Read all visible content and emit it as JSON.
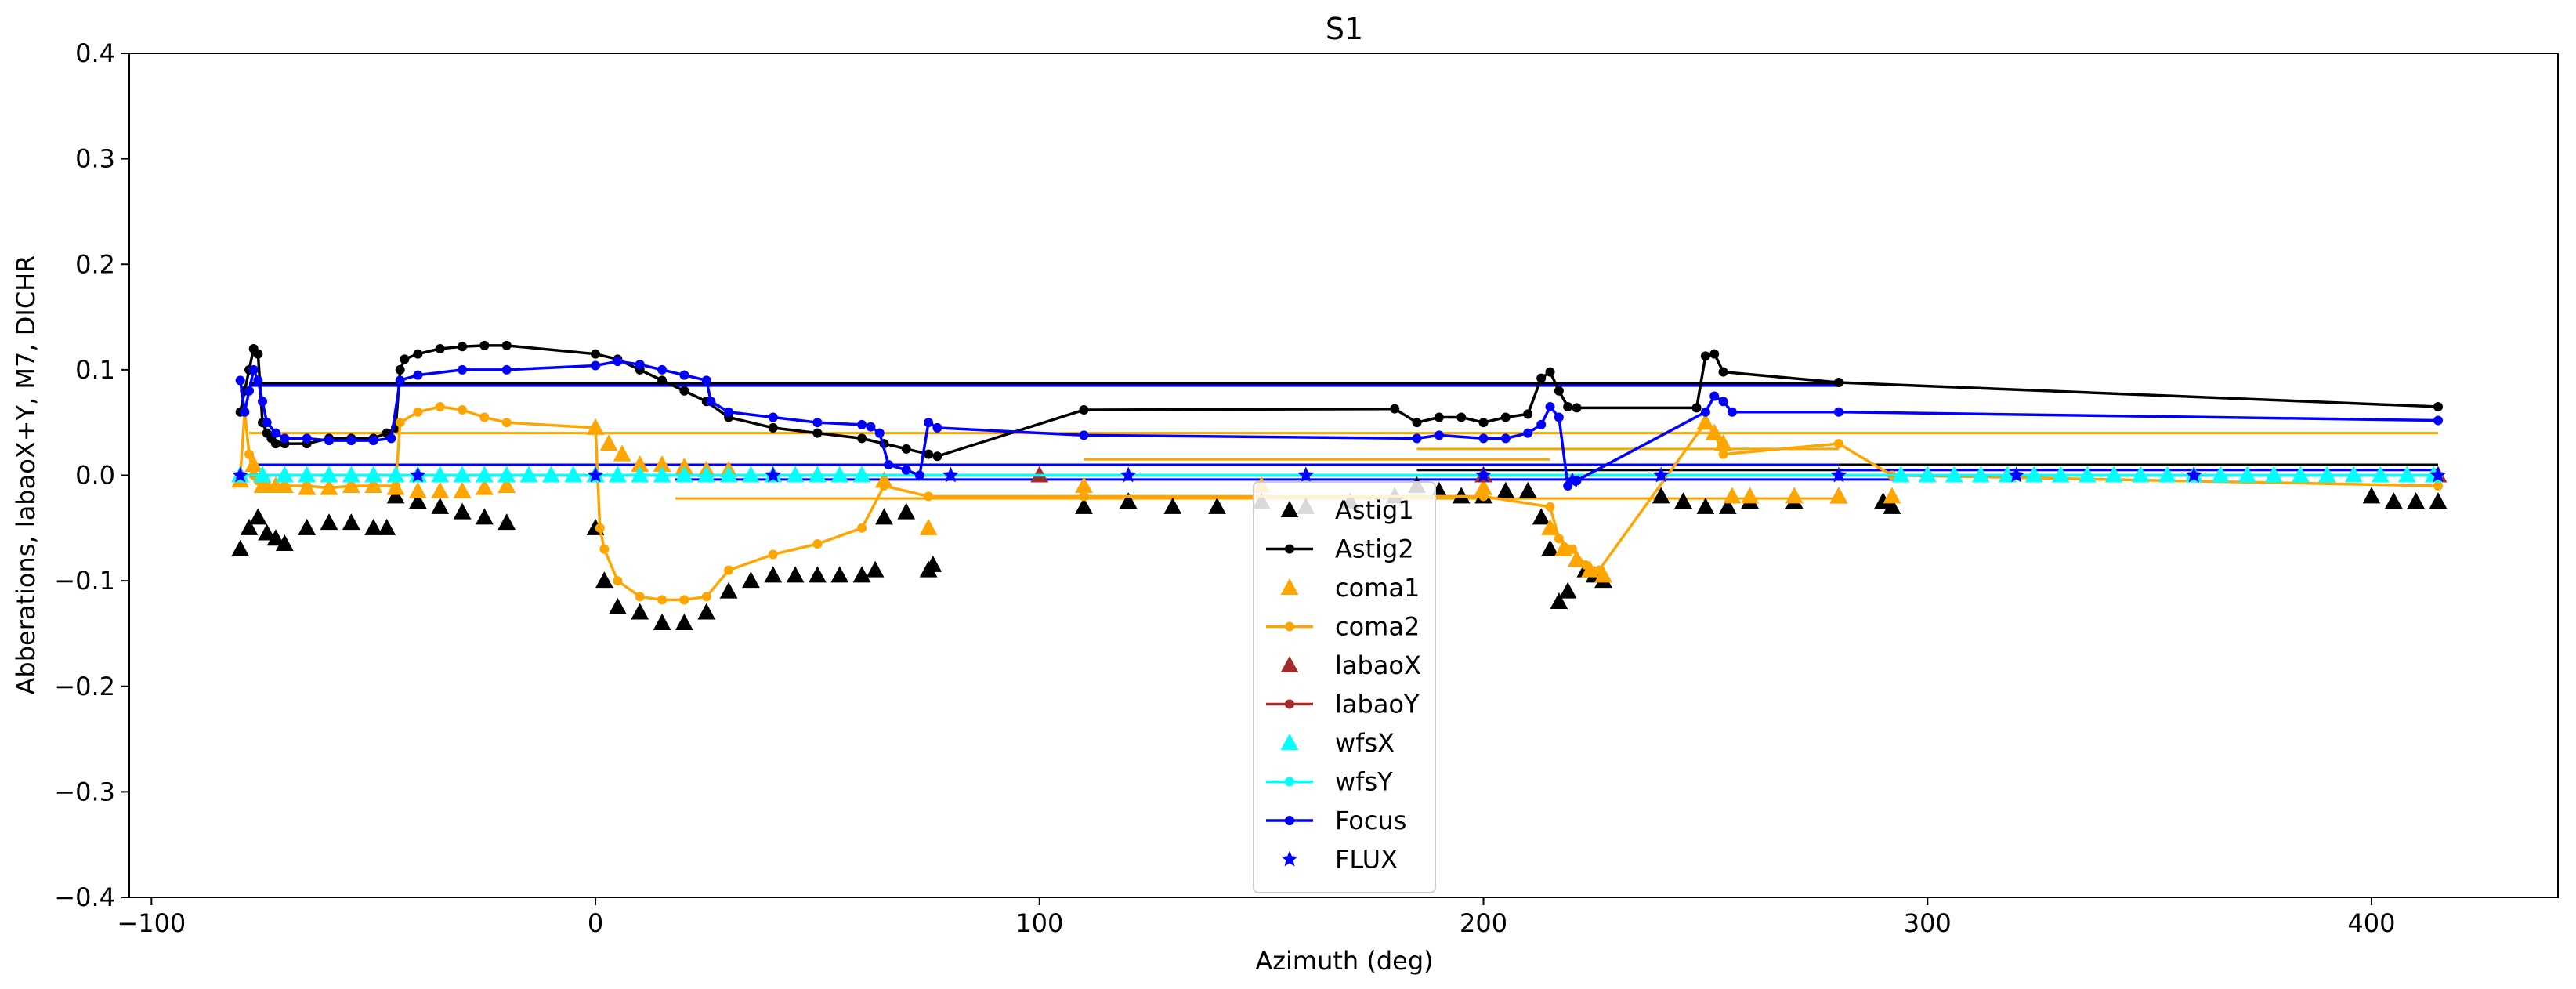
{
  "chart_data": {
    "type": "line",
    "title": "S1",
    "xlabel": "Azimuth (deg)",
    "ylabel": "Abberations, labaoX+Y, M7, DICHR",
    "xlim": [
      -105,
      442
    ],
    "ylim": [
      -0.4,
      0.4
    ],
    "xticks": [
      -100,
      0,
      100,
      200,
      300,
      400
    ],
    "xtick_labels": [
      "−100",
      "0",
      "100",
      "200",
      "300",
      "400"
    ],
    "yticks": [
      -0.4,
      -0.3,
      -0.2,
      -0.1,
      0.0,
      0.1,
      0.2,
      0.3,
      0.4
    ],
    "ytick_labels": [
      "−0.4",
      "−0.3",
      "−0.2",
      "−0.1",
      "0.0",
      "0.1",
      "0.2",
      "0.3",
      "0.4"
    ],
    "grid": false,
    "legend_position": "lower-center",
    "series": [
      {
        "name": "Astig1",
        "color": "#000000",
        "style": "markers",
        "marker": "triangle",
        "x": [
          -80,
          -78,
          -76,
          -74,
          -72,
          -70,
          -65,
          -60,
          -55,
          -50,
          -47,
          -45,
          -40,
          -35,
          -30,
          -25,
          -20,
          0,
          2,
          5,
          10,
          15,
          20,
          25,
          30,
          35,
          40,
          45,
          50,
          55,
          60,
          63,
          65,
          70,
          75,
          76,
          110,
          120,
          130,
          140,
          150,
          160,
          170,
          180,
          185,
          190,
          195,
          200,
          205,
          210,
          213,
          215,
          217,
          219,
          221,
          223,
          225,
          227,
          240,
          245,
          250,
          255,
          260,
          270,
          280,
          290,
          292,
          400,
          405,
          410,
          415
        ],
        "y": [
          -0.07,
          -0.05,
          -0.04,
          -0.055,
          -0.06,
          -0.065,
          -0.05,
          -0.045,
          -0.045,
          -0.05,
          -0.05,
          -0.02,
          -0.025,
          -0.03,
          -0.035,
          -0.04,
          -0.045,
          -0.05,
          -0.1,
          -0.125,
          -0.13,
          -0.14,
          -0.14,
          -0.13,
          -0.11,
          -0.1,
          -0.095,
          -0.095,
          -0.095,
          -0.095,
          -0.095,
          -0.09,
          -0.04,
          -0.035,
          -0.09,
          -0.085,
          -0.03,
          -0.025,
          -0.03,
          -0.03,
          -0.025,
          -0.03,
          -0.025,
          -0.02,
          -0.01,
          -0.015,
          -0.02,
          -0.02,
          -0.015,
          -0.015,
          -0.04,
          -0.07,
          -0.12,
          -0.11,
          -0.08,
          -0.09,
          -0.095,
          -0.1,
          -0.02,
          -0.025,
          -0.03,
          -0.03,
          -0.025,
          -0.025,
          -0.02,
          -0.025,
          -0.03,
          -0.02,
          -0.025,
          -0.025,
          -0.025
        ]
      },
      {
        "name": "Astig2",
        "color": "#000000",
        "style": "line-dots",
        "x": [
          -80,
          -79,
          -78,
          -77,
          -76,
          -75,
          -74,
          -73,
          -72,
          -70,
          -65,
          -60,
          -55,
          -50,
          -47,
          -45,
          -44,
          -43,
          -40,
          -35,
          -30,
          -25,
          -20,
          0,
          5,
          10,
          15,
          20,
          25,
          30,
          40,
          50,
          60,
          65,
          70,
          75,
          77,
          110,
          180,
          185,
          190,
          195,
          200,
          205,
          210,
          213,
          215,
          217,
          219,
          221,
          248,
          250,
          252,
          254,
          280,
          415
        ],
        "y": [
          0.06,
          0.08,
          0.1,
          0.12,
          0.115,
          0.05,
          0.04,
          0.035,
          0.03,
          0.03,
          0.03,
          0.035,
          0.035,
          0.035,
          0.04,
          0.045,
          0.1,
          0.11,
          0.115,
          0.12,
          0.122,
          0.123,
          0.123,
          0.115,
          0.11,
          0.1,
          0.09,
          0.08,
          0.07,
          0.055,
          0.045,
          0.04,
          0.035,
          0.03,
          0.025,
          0.02,
          0.018,
          0.062,
          0.063,
          0.05,
          0.055,
          0.055,
          0.05,
          0.055,
          0.058,
          0.092,
          0.098,
          0.08,
          0.065,
          0.064,
          0.064,
          0.113,
          0.115,
          0.098,
          0.088,
          0.065
        ]
      },
      {
        "name": "coma1",
        "color": "#ffa500",
        "style": "markers",
        "marker": "triangle",
        "x": [
          -80,
          -77,
          -75,
          -72,
          -70,
          -65,
          -60,
          -55,
          -50,
          -45,
          -40,
          -35,
          -30,
          -25,
          -20,
          0,
          3,
          6,
          10,
          15,
          20,
          25,
          30,
          40,
          50,
          60,
          65,
          75,
          110,
          150,
          200,
          215,
          218,
          221,
          224,
          227,
          250,
          252,
          254,
          256,
          260,
          270,
          280,
          292
        ],
        "y": [
          -0.005,
          0.01,
          -0.01,
          -0.01,
          -0.01,
          -0.012,
          -0.012,
          -0.01,
          -0.01,
          -0.012,
          -0.015,
          -0.015,
          -0.015,
          -0.012,
          -0.01,
          0.045,
          0.03,
          0.02,
          0.01,
          0.01,
          0.008,
          0.005,
          0.005,
          0.0,
          0.0,
          0.0,
          -0.005,
          -0.05,
          -0.01,
          -0.01,
          -0.012,
          -0.05,
          -0.07,
          -0.08,
          -0.09,
          -0.095,
          0.05,
          0.04,
          0.03,
          -0.02,
          -0.02,
          -0.02,
          -0.02,
          -0.02
        ]
      },
      {
        "name": "coma2",
        "color": "#ffa500",
        "style": "line-dots",
        "x": [
          -80,
          -79,
          -78,
          -77,
          -76,
          -74,
          -72,
          -70,
          -65,
          -60,
          -55,
          -50,
          -45,
          -44,
          -40,
          -35,
          -30,
          -25,
          -20,
          0,
          1,
          2,
          5,
          10,
          15,
          20,
          25,
          30,
          40,
          50,
          60,
          65,
          75,
          110,
          200,
          215,
          217,
          220,
          223,
          226,
          250,
          252,
          254,
          280,
          292,
          415
        ],
        "y": [
          0.0,
          0.06,
          0.02,
          0.0,
          -0.005,
          -0.01,
          -0.01,
          -0.01,
          -0.01,
          -0.012,
          -0.01,
          -0.01,
          -0.01,
          0.05,
          0.06,
          0.065,
          0.062,
          0.055,
          0.05,
          0.045,
          -0.05,
          -0.07,
          -0.1,
          -0.115,
          -0.118,
          -0.118,
          -0.115,
          -0.09,
          -0.075,
          -0.065,
          -0.05,
          -0.01,
          -0.02,
          -0.02,
          -0.02,
          -0.03,
          -0.06,
          -0.07,
          -0.085,
          -0.09,
          0.05,
          0.04,
          0.02,
          0.03,
          0.0,
          -0.01
        ]
      },
      {
        "name": "labaoX",
        "color": "#a52a2a",
        "style": "markers",
        "marker": "triangle",
        "x": [
          -80,
          0,
          100,
          200,
          300,
          415
        ],
        "y": [
          0.0,
          0.0,
          0.0,
          0.0,
          0.0,
          0.0
        ]
      },
      {
        "name": "labaoY",
        "color": "#a52a2a",
        "style": "line-dots",
        "x": [
          -80,
          0,
          100,
          200,
          300,
          415
        ],
        "y": [
          0.0,
          0.0,
          0.0,
          0.0,
          0.0,
          0.0
        ]
      },
      {
        "name": "wfsX",
        "color": "#00ffff",
        "style": "markers",
        "marker": "triangle",
        "x": [
          -80,
          -75,
          -70,
          -65,
          -60,
          -55,
          -50,
          -45,
          -40,
          -35,
          -30,
          -25,
          -20,
          -15,
          -10,
          -5,
          0,
          5,
          10,
          15,
          20,
          25,
          30,
          35,
          40,
          45,
          50,
          55,
          60,
          294,
          300,
          306,
          312,
          318,
          324,
          330,
          336,
          342,
          348,
          354,
          360,
          366,
          372,
          378,
          384,
          390,
          396,
          402,
          408,
          414
        ],
        "y": [
          0.0,
          0.0,
          0.0,
          0.0,
          0.0,
          0.0,
          0.0,
          0.0,
          0.0,
          0.0,
          0.0,
          0.0,
          0.0,
          0.0,
          0.0,
          0.0,
          0.0,
          0.0,
          0.0,
          0.0,
          0.0,
          0.0,
          0.0,
          0.0,
          0.0,
          0.0,
          0.0,
          0.0,
          0.0,
          0.0,
          0.0,
          0.0,
          0.0,
          0.0,
          0.0,
          0.0,
          0.0,
          0.0,
          0.0,
          0.0,
          0.0,
          0.0,
          0.0,
          0.0,
          0.0,
          0.0,
          0.0,
          0.0,
          0.0,
          0.0
        ]
      },
      {
        "name": "wfsY",
        "color": "#00ffff",
        "style": "line-dots",
        "x": [
          -80,
          -60,
          -40,
          -20,
          0,
          20,
          40,
          60,
          294,
          320,
          360,
          415
        ],
        "y": [
          0.0,
          0.0,
          0.0,
          0.0,
          0.0,
          0.0,
          0.0,
          0.0,
          0.0,
          0.0,
          0.0,
          0.0
        ]
      },
      {
        "name": "Focus",
        "color": "#0000ff",
        "style": "line-dots",
        "x": [
          -80,
          -79,
          -78,
          -77,
          -76,
          -75,
          -74,
          -72,
          -70,
          -65,
          -60,
          -55,
          -50,
          -46,
          -44,
          -40,
          -30,
          -20,
          0,
          5,
          10,
          15,
          20,
          25,
          26,
          30,
          40,
          50,
          60,
          62,
          64,
          66,
          70,
          73,
          75,
          77,
          110,
          185,
          190,
          200,
          205,
          210,
          213,
          215,
          217,
          219,
          221,
          250,
          252,
          254,
          256,
          280,
          415
        ],
        "y": [
          0.09,
          0.06,
          0.08,
          0.1,
          0.09,
          0.07,
          0.05,
          0.04,
          0.035,
          0.035,
          0.033,
          0.033,
          0.033,
          0.035,
          0.09,
          0.095,
          0.1,
          0.1,
          0.104,
          0.108,
          0.105,
          0.1,
          0.095,
          0.09,
          0.07,
          0.06,
          0.055,
          0.05,
          0.048,
          0.046,
          0.04,
          0.01,
          0.005,
          0.0,
          0.05,
          0.045,
          0.038,
          0.035,
          0.038,
          0.035,
          0.035,
          0.04,
          0.048,
          0.065,
          0.055,
          -0.01,
          -0.005,
          0.06,
          0.075,
          0.07,
          0.06,
          0.06,
          0.052
        ]
      },
      {
        "name": "FLUX",
        "color": "#0000ff",
        "style": "markers",
        "marker": "star",
        "x": [
          -80,
          -40,
          0,
          40,
          80,
          120,
          160,
          200,
          220,
          240,
          280,
          320,
          360,
          415
        ],
        "y": [
          0.0,
          0.0,
          0.0,
          0.0,
          0.0,
          0.0,
          0.0,
          0.0,
          -0.005,
          0.0,
          0.0,
          0.0,
          0.0,
          0.0
        ]
      }
    ],
    "reference_lines": [
      {
        "name": "Astig2",
        "color": "#000000",
        "x": [
          -78,
          280
        ],
        "y": [
          0.087,
          0.087
        ]
      },
      {
        "name": "Focus",
        "color": "#0000ff",
        "x": [
          -78,
          280
        ],
        "y": [
          0.085,
          0.085
        ]
      },
      {
        "name": "Focus",
        "color": "#0000ff",
        "x": [
          -78,
          280
        ],
        "y": [
          0.01,
          0.01
        ]
      },
      {
        "name": "Focus",
        "color": "#0000ff",
        "x": [
          18,
          295
        ],
        "y": [
          -0.004,
          -0.004
        ]
      },
      {
        "name": "coma2",
        "color": "#ffa500",
        "x": [
          -78,
          415
        ],
        "y": [
          0.04,
          0.04
        ]
      },
      {
        "name": "coma2",
        "color": "#ffa500",
        "x": [
          18,
          280
        ],
        "y": [
          -0.022,
          -0.022
        ]
      },
      {
        "name": "coma2",
        "color": "#ffa500",
        "x": [
          110,
          215
        ],
        "y": [
          0.015,
          0.015
        ]
      },
      {
        "name": "coma2",
        "color": "#ffa500",
        "x": [
          185,
          280
        ],
        "y": [
          0.025,
          0.025
        ]
      },
      {
        "name": "Astig2",
        "color": "#000000",
        "x": [
          185,
          292
        ],
        "y": [
          0.005,
          0.005
        ]
      },
      {
        "name": "Astig2",
        "color": "#000000",
        "x": [
          280,
          415
        ],
        "y": [
          0.01,
          0.01
        ]
      },
      {
        "name": "Focus",
        "color": "#0000ff",
        "x": [
          280,
          415
        ],
        "y": [
          0.005,
          0.005
        ]
      }
    ]
  }
}
